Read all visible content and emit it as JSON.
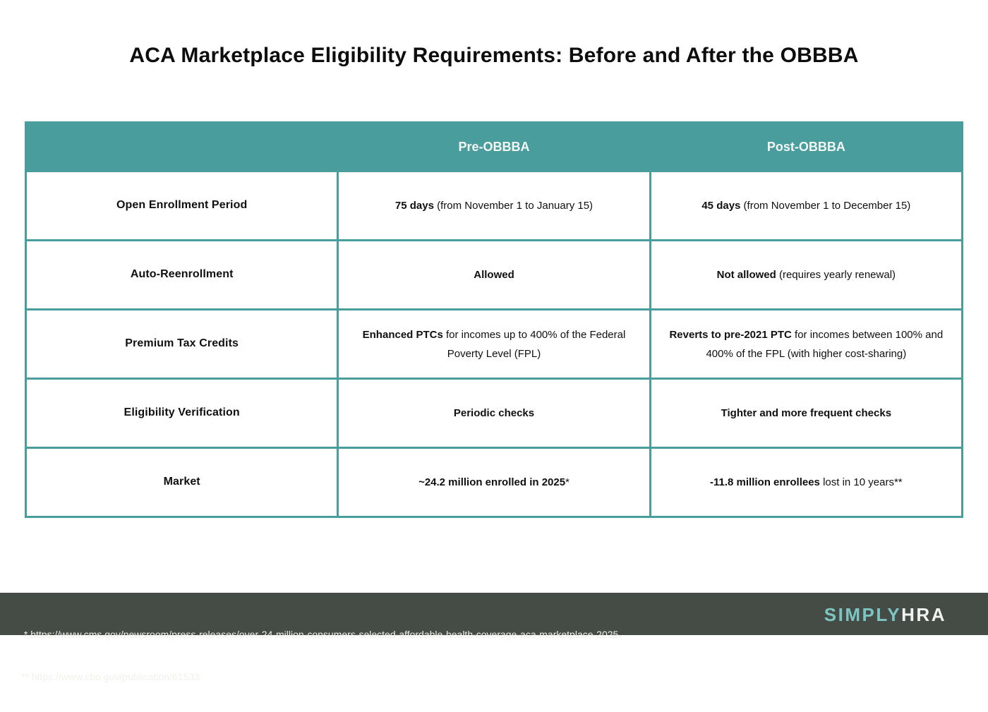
{
  "page": {
    "title": "ACA Marketplace Eligibility Requirements: Before and After the OBBBA"
  },
  "colors": {
    "table_teal": "#4A9D9D",
    "footer_bg": "#454C46",
    "logo_teal": "#7DC5C3",
    "logo_white": "#F0F2F0"
  },
  "table": {
    "columns": [
      "",
      "Pre-OBBBA",
      "Post-OBBBA"
    ],
    "rows": [
      {
        "label": "Open Enrollment Period",
        "pre": {
          "lead": "75 days",
          "rest": " (from November 1 to January 15)"
        },
        "post": {
          "lead": "45 days",
          "rest": " (from November 1 to December 15)"
        }
      },
      {
        "label": "Auto-Reenrollment",
        "pre": {
          "lead": "Allowed",
          "rest": ""
        },
        "post": {
          "lead": "Not allowed",
          "rest": " (requires yearly renewal)"
        }
      },
      {
        "label": "Premium Tax Credits",
        "pre": {
          "lead": "Enhanced PTCs",
          "rest": " for incomes up to 400% of the Federal Poverty Level (FPL)"
        },
        "post": {
          "lead": "Reverts to pre-2021 PTC",
          "rest": " for incomes between 100% and 400% of the FPL (with higher cost-sharing)"
        }
      },
      {
        "label": "Eligibility Verification",
        "pre": {
          "lead": "Periodic checks",
          "rest": ""
        },
        "post": {
          "lead": "Tighter and more frequent checks",
          "rest": ""
        }
      },
      {
        "label": "Market",
        "pre": {
          "lead": "~24.2 million enrolled in 2025",
          "rest": "*"
        },
        "post": {
          "lead": "-11.8 million enrollees",
          "rest": " lost in 10 years**"
        }
      }
    ]
  },
  "footer": {
    "source1": " * https://www.cms.gov/newsroom/press-releases/over-24-million-consumers-selected-affordable-health-coverage-aca-marketplace-2025",
    "source2": "** https://www.cbo.gov/publication/61533",
    "logo_part1": "SIMPLY",
    "logo_part2": "HRA"
  },
  "chart_data": {
    "type": "table",
    "title": "ACA Marketplace Eligibility Requirements: Before and After the OBBBA",
    "columns": [
      "",
      "Pre-OBBBA",
      "Post-OBBBA"
    ],
    "rows": [
      [
        "Open Enrollment Period",
        "75 days (from November 1 to January 15)",
        "45 days (from November 1 to December 15)"
      ],
      [
        "Auto-Reenrollment",
        "Allowed",
        "Not allowed (requires yearly renewal)"
      ],
      [
        "Premium Tax Credits",
        "Enhanced PTCs for incomes up to 400% of the Federal Poverty Level (FPL)",
        "Reverts to pre-2021 PTC for incomes between 100% and 400% of the FPL (with higher cost-sharing)"
      ],
      [
        "Eligibility Verification",
        "Periodic checks",
        "Tighter and more frequent checks"
      ],
      [
        "Market",
        "~24.2 million enrolled in 2025*",
        "-11.8 million enrollees lost in 10 years**"
      ]
    ],
    "footnotes": [
      "* https://www.cms.gov/newsroom/press-releases/over-24-million-consumers-selected-affordable-health-coverage-aca-marketplace-2025",
      "** https://www.cbo.gov/publication/61533"
    ],
    "layout": {
      "header_background": "#4A9D9D",
      "grid": true,
      "columns_equal_width": true
    }
  }
}
